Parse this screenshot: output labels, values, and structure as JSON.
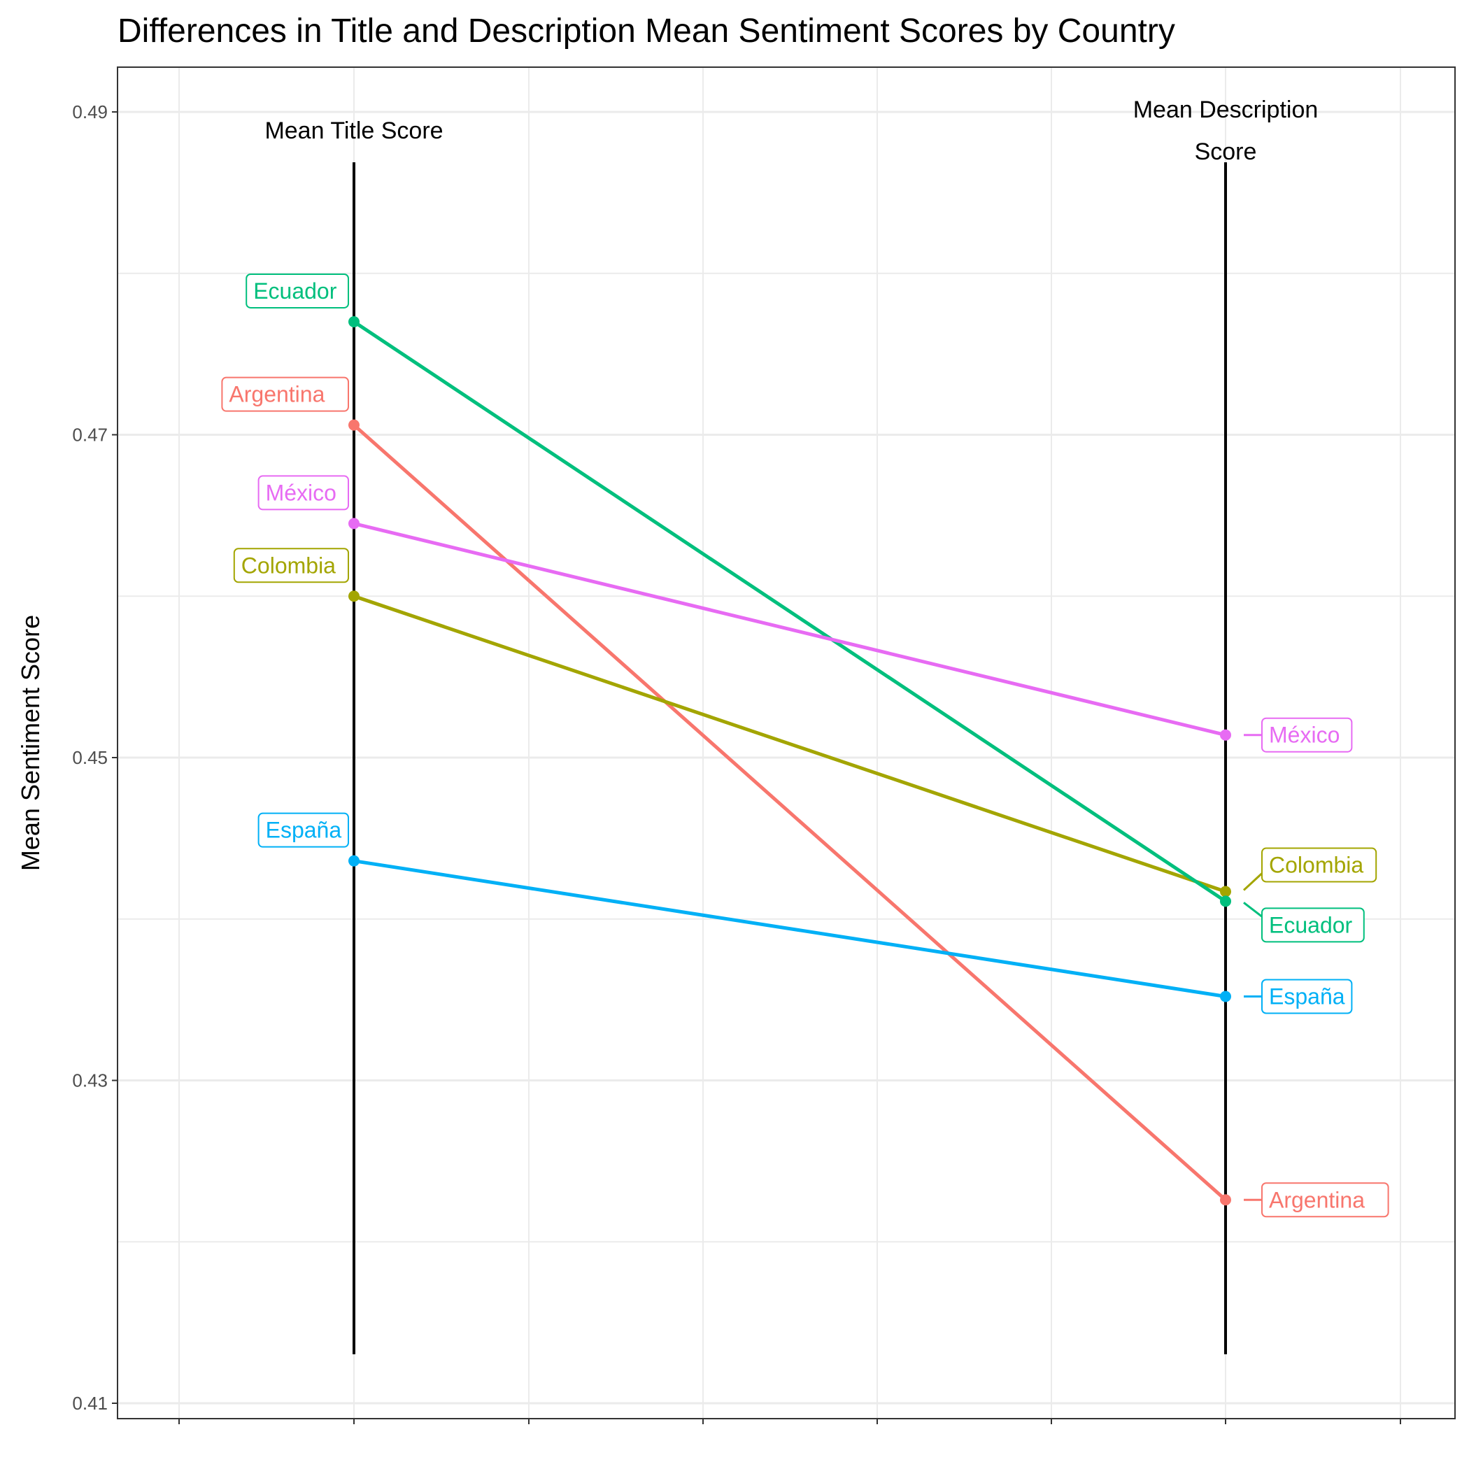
{
  "chart_data": {
    "type": "line",
    "title": "Differences in Title and Description Mean Sentiment Scores by Country",
    "ylabel": "Mean Sentiment Score",
    "xlabel": "",
    "ylim": [
      0.41,
      0.49
    ],
    "yticks": [
      "0.41",
      "0.43",
      "0.45",
      "0.47",
      "0.49"
    ],
    "grid": true,
    "legend": "none",
    "categories": [
      "Mean Title Score",
      "Mean Description Score"
    ],
    "series": [
      {
        "name": "Argentina",
        "color": "#F8766D",
        "values": [
          0.4706,
          0.4226
        ]
      },
      {
        "name": "Colombia",
        "color": "#A3A500",
        "values": [
          0.46,
          0.4417
        ]
      },
      {
        "name": "Ecuador",
        "color": "#00BF7D",
        "values": [
          0.477,
          0.4411
        ]
      },
      {
        "name": "España",
        "color": "#00B0F6",
        "values": [
          0.4436,
          0.4352
        ]
      },
      {
        "name": "México",
        "color": "#E76BF3",
        "values": [
          0.4645,
          0.4514
        ]
      }
    ]
  }
}
